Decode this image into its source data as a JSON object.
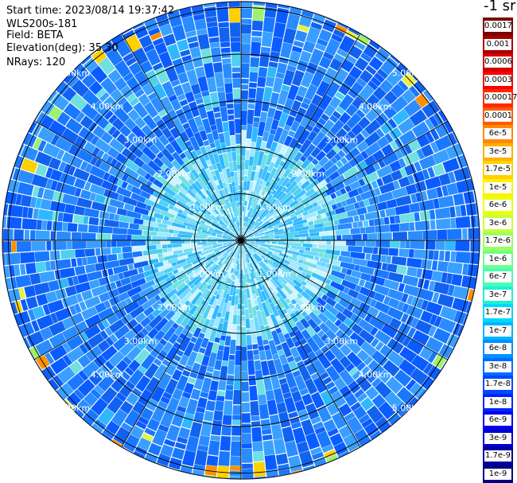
{
  "info": {
    "start_time": "Start time: 2023/08/14 19:37:42",
    "instrument": "WLS200s-181",
    "field": "Field: BETA",
    "elevation": "Elevation(deg): 35.30",
    "nrays": "NRays: 120"
  },
  "colorbar": {
    "unit_label": "-1 sr",
    "labels": [
      "0.0017",
      "0.001",
      "0.0006",
      "0.0003",
      "0.00017",
      "0.0001",
      "6e-5",
      "3e-5",
      "1.7e-5",
      "1e-5",
      "6e-6",
      "3e-6",
      "1.7e-6",
      "1e-6",
      "6e-7",
      "3e-7",
      "1.7e-7",
      "1e-7",
      "6e-8",
      "3e-8",
      "1.7e-8",
      "1e-8",
      "6e-9",
      "3e-9",
      "1.7e-9",
      "1e-9"
    ],
    "colors": [
      "#7a0000",
      "#a80000",
      "#d40000",
      "#ff0000",
      "#ff2a00",
      "#ff5a00",
      "#ff8a00",
      "#ffb000",
      "#ffd200",
      "#fff000",
      "#eaff10",
      "#c8ff38",
      "#9cff60",
      "#70ff88",
      "#48ffb0",
      "#20f0d8",
      "#00d8ff",
      "#00b4ff",
      "#0090ff",
      "#006cff",
      "#0048ff",
      "#0024ff",
      "#0000f0",
      "#0000c8",
      "#0000a0",
      "#000080"
    ]
  },
  "range_rings": [
    "1.00km",
    "2.00km",
    "3.00km",
    "4.00km",
    "5.00km"
  ],
  "field_colors": {
    "base": [
      "#0a5cff",
      "#1a78ff",
      "#2a8cff",
      "#3aa0ff",
      "#1262f0"
    ],
    "mid": [
      "#30b8ff",
      "#50d0f0",
      "#70e0e0"
    ],
    "high": [
      "#a0f070",
      "#e8f040",
      "#ffd000",
      "#ff9000"
    ],
    "near": [
      "#40c0ff",
      "#70d8ff",
      "#a0e8ff",
      "#d0f4ff"
    ]
  }
}
